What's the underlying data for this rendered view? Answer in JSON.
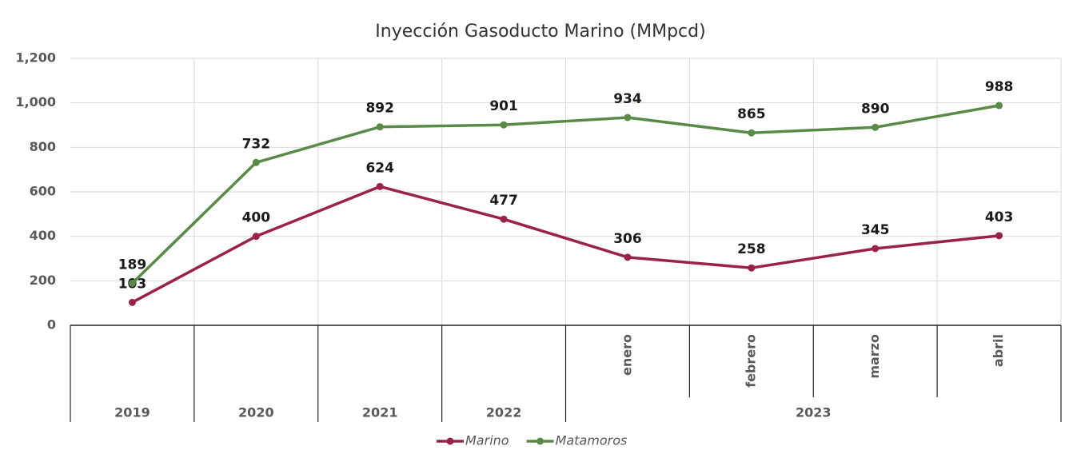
{
  "chart_data": {
    "type": "line",
    "title": "Inyección Gasoducto Marino (MMpcd)",
    "categories": [
      null,
      null,
      null,
      null,
      "enero",
      "febrero",
      "marzo",
      "abril"
    ],
    "category_groups": [
      "2019",
      "2020",
      "2021",
      "2022",
      "2023",
      "2023",
      "2023",
      "2023"
    ],
    "series": [
      {
        "name": "Marino",
        "color": "#9b2247",
        "values": [
          103,
          400,
          624,
          477,
          306,
          258,
          345,
          403
        ]
      },
      {
        "name": "Matamoros",
        "color": "#5a8a48",
        "values": [
          189,
          732,
          892,
          901,
          934,
          865,
          890,
          988
        ]
      }
    ],
    "ylim": [
      0,
      1200
    ],
    "yticks": [
      0,
      200,
      400,
      600,
      800,
      {
        "value": 1000,
        "label": "1,000"
      },
      {
        "value": 1200,
        "label": "1,200"
      }
    ],
    "grid": true,
    "legend": "bottom"
  }
}
